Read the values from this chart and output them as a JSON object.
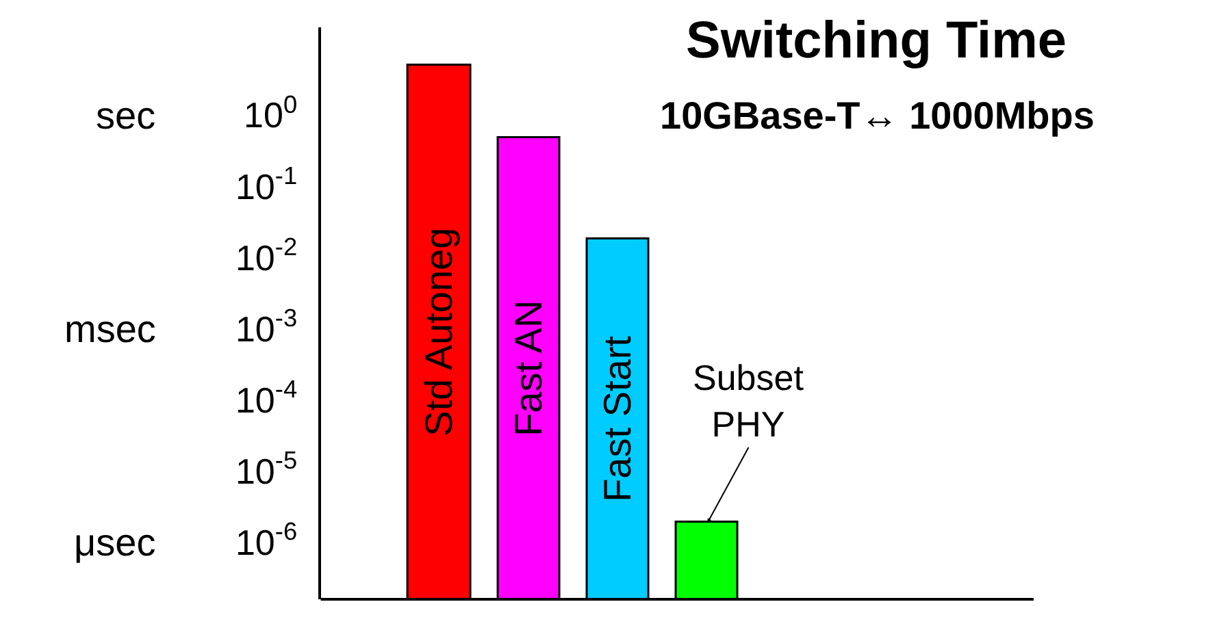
{
  "chart_data": {
    "type": "bar",
    "title": "Switching Time",
    "subtitle": "10GBase-T↔ 1000Mbps",
    "categories": [
      "Std Autoneg",
      "Fast AN",
      "Fast Start",
      "Subset PHY"
    ],
    "values": [
      4.9,
      0.47,
      0.018,
      1.9e-06
    ],
    "colors": [
      "#ff0000",
      "#ff00ff",
      "#00ccff",
      "#00ff00"
    ],
    "log": true,
    "ylim": [
      1.6e-07,
      17
    ],
    "yticks": [
      {
        "value": 1,
        "label": "10$^{0}$"
      },
      {
        "value": 0.1,
        "label": "10$^{-1}$"
      },
      {
        "value": 0.01,
        "label": "10$^{-2}$"
      },
      {
        "value": 0.001,
        "label": "10$^{-3}$"
      },
      {
        "value": 0.0001,
        "label": "10$^{-4}$"
      },
      {
        "value": 1e-05,
        "label": "10$^{-5}$"
      },
      {
        "value": 1e-06,
        "label": "10$^{-6}$"
      }
    ],
    "annotations": [
      "sec",
      "msec",
      "μsec"
    ],
    "legend": false
  }
}
